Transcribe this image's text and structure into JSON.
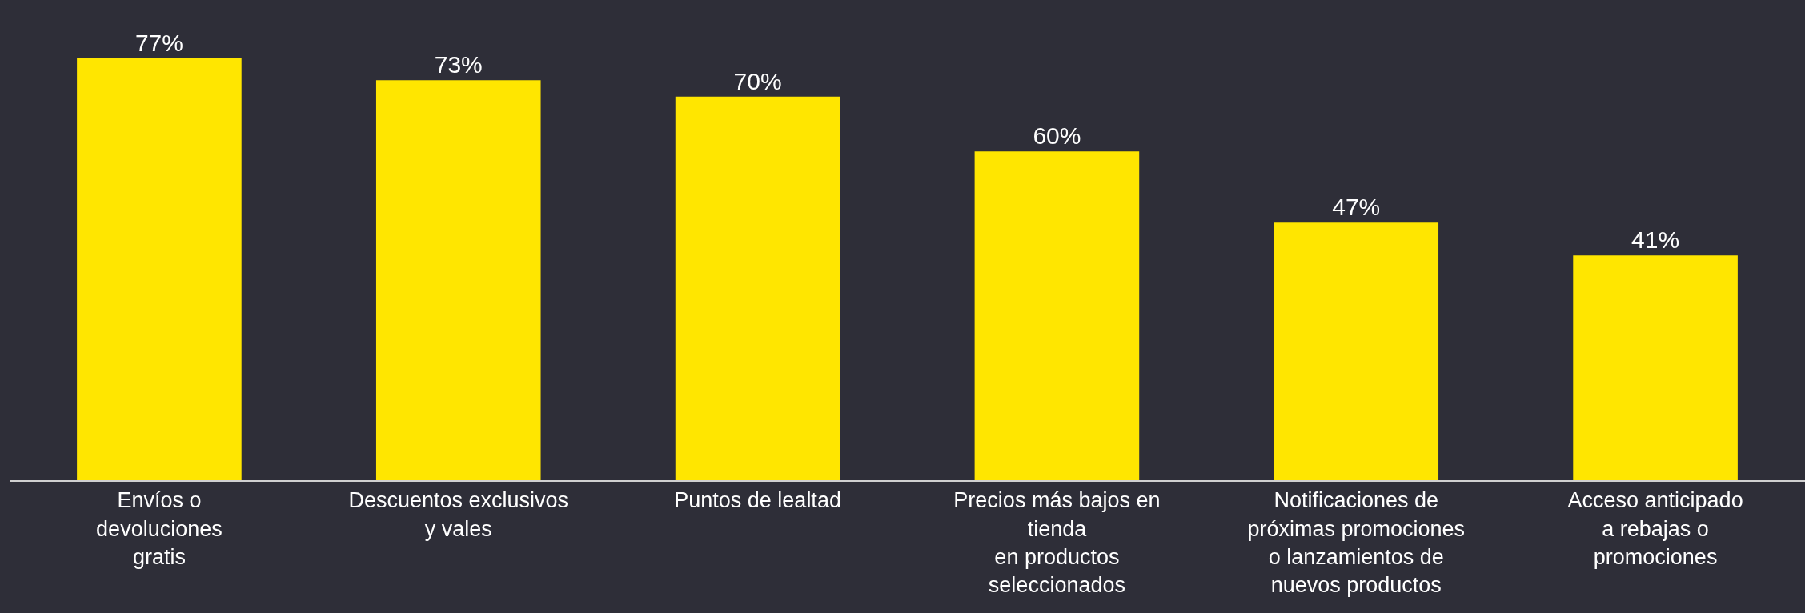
{
  "chart_data": {
    "type": "bar",
    "categories": [
      "Envíos o\ndevoluciones\ngratis",
      "Descuentos exclusivos\ny vales",
      "Puntos de lealtad",
      "Precios más bajos en\ntienda\nen productos\nseleccionados",
      "Notificaciones de\npróximas promociones\no lanzamientos de\nnuevos productos",
      "Acceso anticipado\na rebajas o\npromociones"
    ],
    "values": [
      77,
      73,
      70,
      60,
      47,
      41
    ],
    "value_labels": [
      "77%",
      "73%",
      "70%",
      "60%",
      "47%",
      "41%"
    ],
    "color": "#ffe600",
    "grid": false,
    "legend": false
  }
}
